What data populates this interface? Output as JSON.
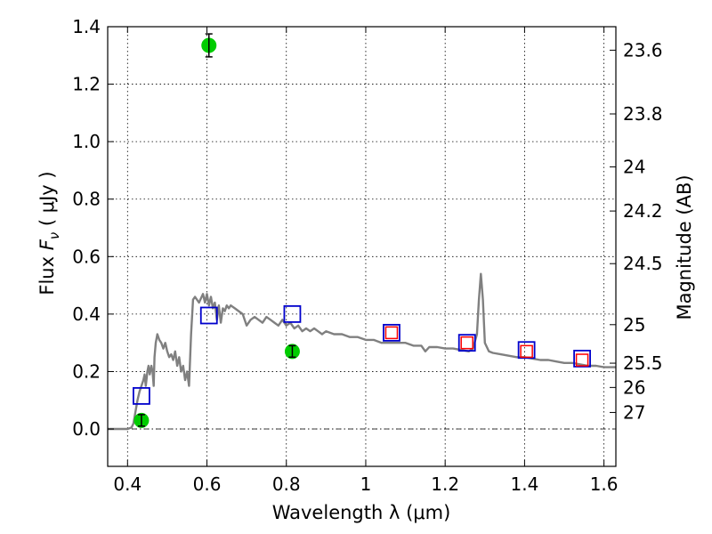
{
  "chart_data": {
    "type": "scatter",
    "xlabel": "Wavelength  λ (μm)",
    "ylabel": "Flux  F_ν  ( μJy )",
    "ylabel_parts": {
      "prefix": "Flux  ",
      "symbol": "F",
      "subscript": "ν",
      "suffix": "  ( μJy )"
    },
    "y2label": "Magnitude (AB)",
    "xlim": [
      0.35,
      1.63
    ],
    "ylim": [
      -0.13,
      1.4
    ],
    "x_ticks": [
      0.4,
      0.6,
      0.8,
      1.0,
      1.2,
      1.4,
      1.6
    ],
    "x_tick_labels": [
      "0.4",
      "0.6",
      "0.8",
      "1",
      "1.2",
      "1.4",
      "1.6"
    ],
    "y_ticks": [
      0.0,
      0.2,
      0.4,
      0.6,
      0.8,
      1.0,
      1.2,
      1.4
    ],
    "y_tick_labels": [
      "0.0",
      "0.2",
      "0.4",
      "0.6",
      "0.8",
      "1.0",
      "1.2",
      "1.4"
    ],
    "y2_ticks": [
      23.6,
      23.8,
      24,
      24.2,
      24.5,
      25,
      25.5,
      26,
      27
    ],
    "y2_tick_labels": [
      "23.6",
      "23.8",
      "24",
      "24.2",
      "24.5",
      "25",
      "25.5",
      "26",
      "27"
    ],
    "grid": true,
    "colors": {
      "model": "#808080",
      "observed": "#00cc00",
      "model_blue": "#0000cc",
      "model_red": "#ff0000"
    },
    "model_spectrum": {
      "x": [
        0.35,
        0.36,
        0.37,
        0.38,
        0.39,
        0.4,
        0.41,
        0.415,
        0.42,
        0.425,
        0.43,
        0.435,
        0.44,
        0.443,
        0.446,
        0.45,
        0.453,
        0.456,
        0.46,
        0.463,
        0.466,
        0.468,
        0.471,
        0.475,
        0.48,
        0.485,
        0.49,
        0.495,
        0.5,
        0.505,
        0.51,
        0.515,
        0.52,
        0.525,
        0.53,
        0.535,
        0.54,
        0.545,
        0.55,
        0.555,
        0.56,
        0.565,
        0.57,
        0.58,
        0.59,
        0.595,
        0.6,
        0.605,
        0.61,
        0.615,
        0.62,
        0.625,
        0.63,
        0.635,
        0.64,
        0.645,
        0.65,
        0.655,
        0.66,
        0.67,
        0.68,
        0.69,
        0.7,
        0.71,
        0.72,
        0.73,
        0.74,
        0.75,
        0.76,
        0.77,
        0.78,
        0.79,
        0.8,
        0.81,
        0.82,
        0.83,
        0.84,
        0.85,
        0.86,
        0.87,
        0.88,
        0.89,
        0.9,
        0.92,
        0.94,
        0.96,
        0.98,
        1.0,
        1.02,
        1.04,
        1.06,
        1.08,
        1.1,
        1.12,
        1.14,
        1.15,
        1.16,
        1.18,
        1.2,
        1.22,
        1.24,
        1.26,
        1.27,
        1.28,
        1.285,
        1.29,
        1.295,
        1.3,
        1.31,
        1.32,
        1.34,
        1.36,
        1.38,
        1.4,
        1.42,
        1.44,
        1.46,
        1.48,
        1.5,
        1.52,
        1.54,
        1.56,
        1.58,
        1.6,
        1.63
      ],
      "y": [
        0.0,
        0.0,
        0.0,
        0.0,
        0.0,
        0.0,
        0.005,
        0.02,
        0.06,
        0.1,
        0.13,
        0.15,
        0.17,
        0.19,
        0.15,
        0.2,
        0.22,
        0.19,
        0.22,
        0.2,
        0.15,
        0.25,
        0.3,
        0.33,
        0.31,
        0.3,
        0.28,
        0.3,
        0.27,
        0.25,
        0.26,
        0.24,
        0.27,
        0.22,
        0.25,
        0.2,
        0.22,
        0.17,
        0.2,
        0.15,
        0.33,
        0.45,
        0.46,
        0.44,
        0.47,
        0.44,
        0.47,
        0.43,
        0.46,
        0.42,
        0.44,
        0.38,
        0.43,
        0.37,
        0.42,
        0.41,
        0.43,
        0.42,
        0.43,
        0.42,
        0.41,
        0.4,
        0.36,
        0.38,
        0.39,
        0.38,
        0.37,
        0.39,
        0.38,
        0.37,
        0.36,
        0.38,
        0.36,
        0.37,
        0.35,
        0.36,
        0.34,
        0.35,
        0.34,
        0.35,
        0.34,
        0.33,
        0.34,
        0.33,
        0.33,
        0.32,
        0.32,
        0.31,
        0.31,
        0.3,
        0.3,
        0.3,
        0.3,
        0.29,
        0.29,
        0.27,
        0.285,
        0.285,
        0.28,
        0.28,
        0.275,
        0.27,
        0.28,
        0.33,
        0.45,
        0.54,
        0.45,
        0.3,
        0.27,
        0.265,
        0.26,
        0.255,
        0.25,
        0.25,
        0.245,
        0.24,
        0.24,
        0.235,
        0.23,
        0.23,
        0.225,
        0.22,
        0.22,
        0.215,
        0.215
      ]
    },
    "observed_points": {
      "x": [
        0.435,
        0.605,
        0.815
      ],
      "y": [
        0.03,
        1.335,
        0.27
      ],
      "err": [
        0.02,
        0.04,
        0.02
      ]
    },
    "model_photometry_blue": {
      "x": [
        0.435,
        0.605,
        0.815,
        1.065,
        1.255,
        1.405,
        1.545
      ],
      "y": [
        0.115,
        0.395,
        0.4,
        0.335,
        0.3,
        0.275,
        0.245
      ]
    },
    "model_photometry_red": {
      "x": [
        1.065,
        1.255,
        1.405,
        1.545
      ],
      "y": [
        0.335,
        0.3,
        0.27,
        0.24
      ]
    }
  }
}
